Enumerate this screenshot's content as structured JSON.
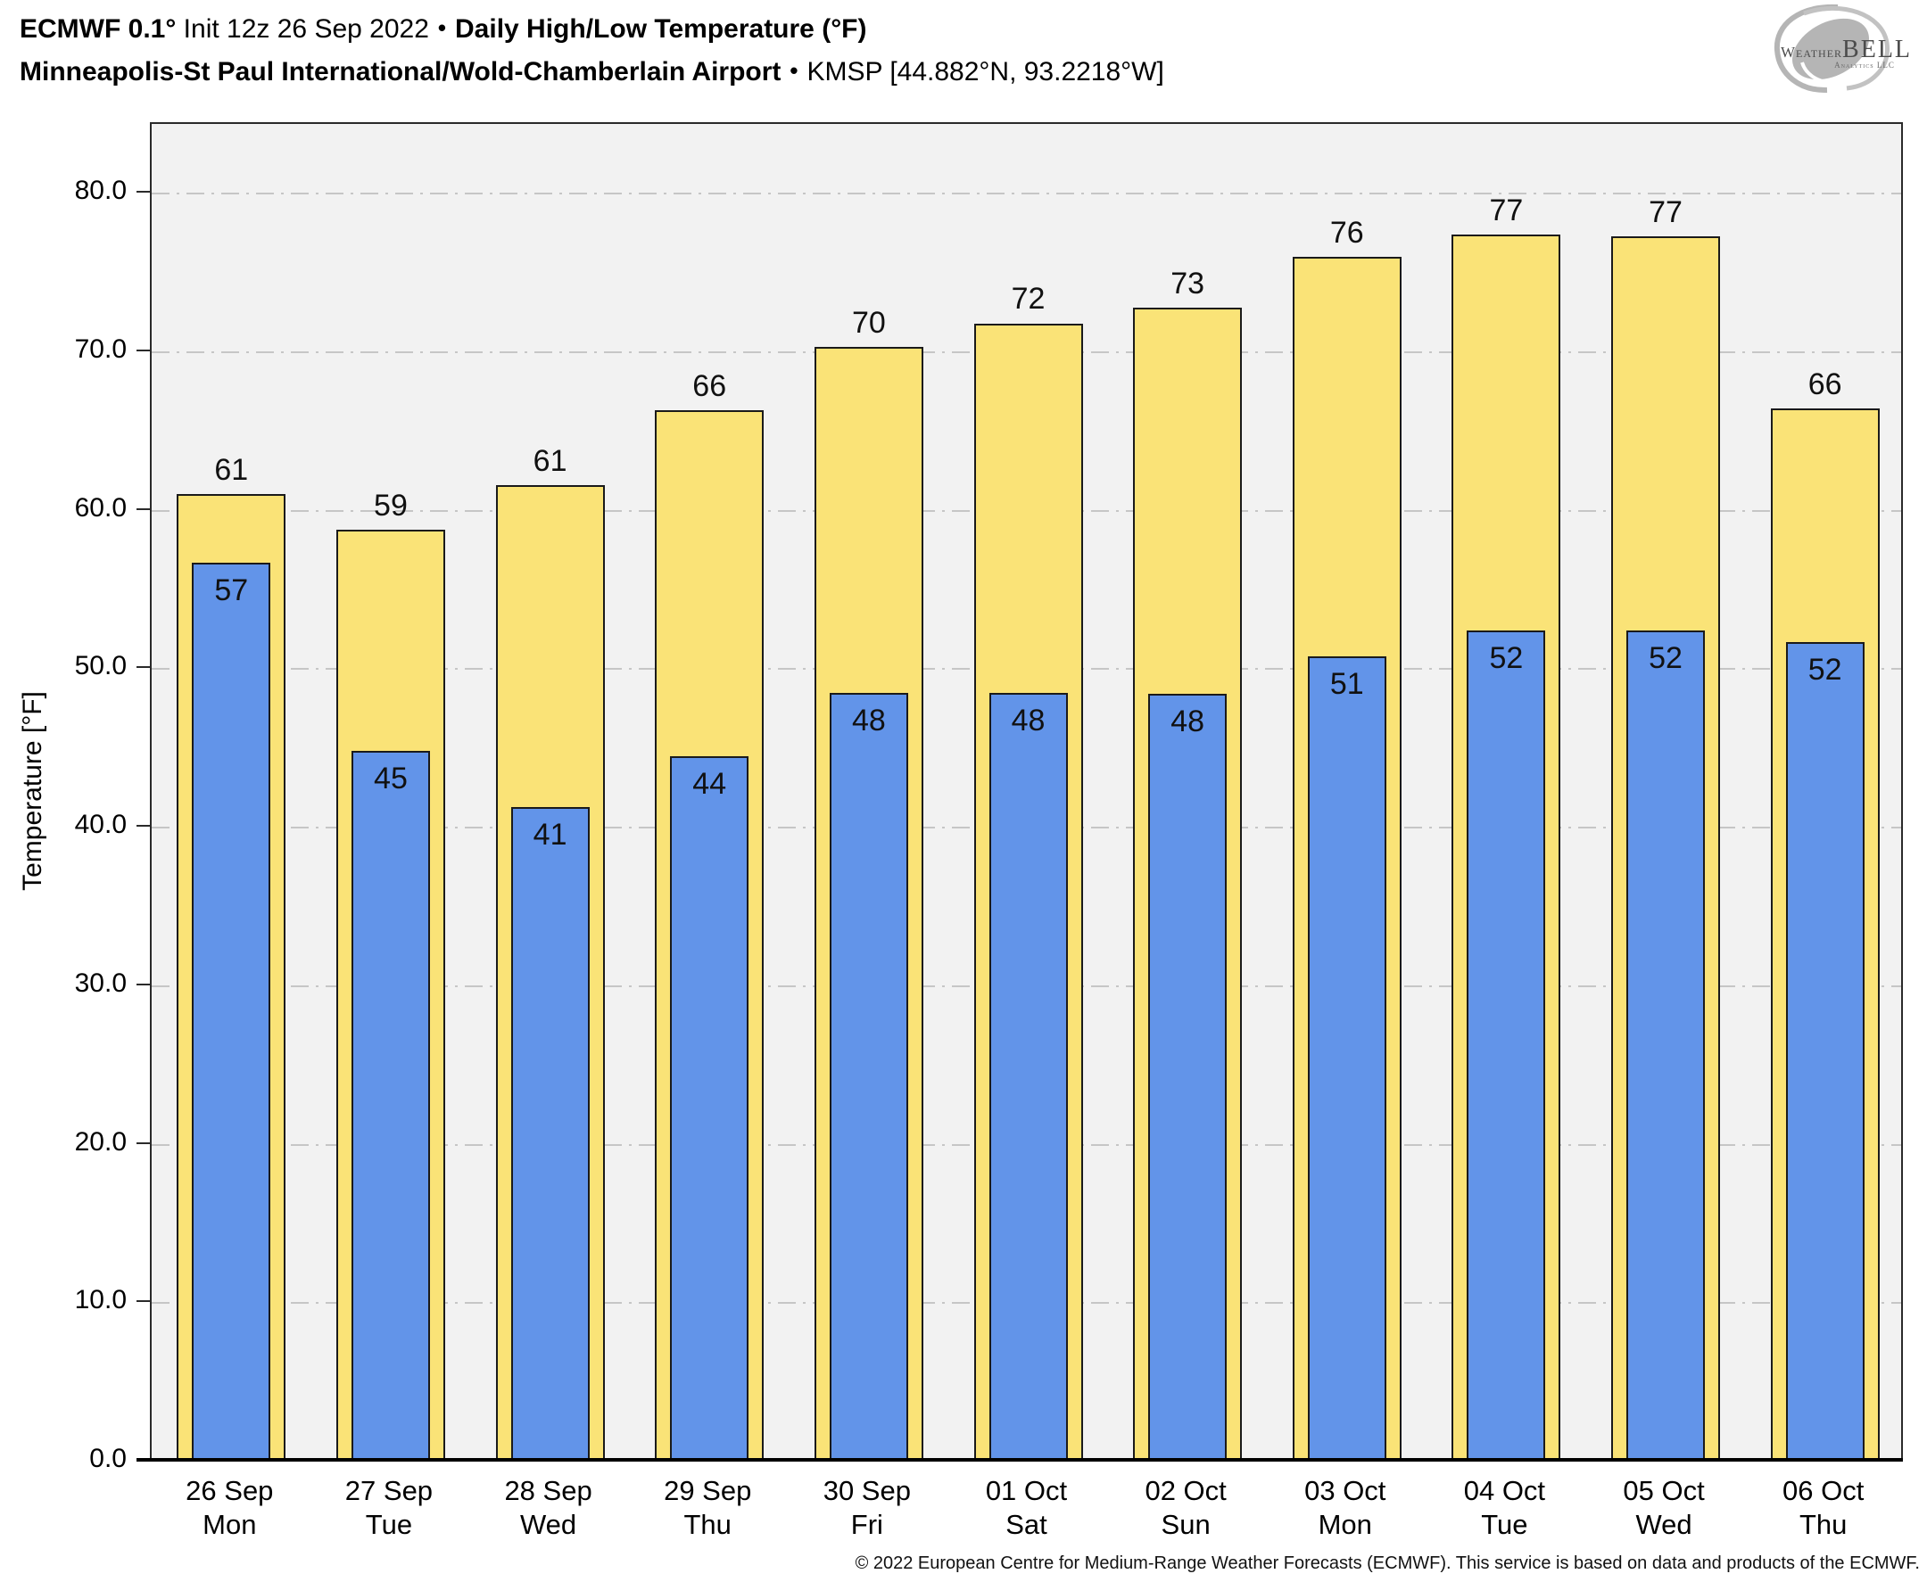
{
  "header": {
    "title": {
      "model_bold": "ECMWF 0.1°",
      "init": " Init 12z 26 Sep 2022",
      "bullet": "•",
      "product_bold": "Daily High/Low Temperature (°F)"
    },
    "subtitle": {
      "station_bold": "Minneapolis-St Paul International/Wold-Chamberlain Airport",
      "bullet": "•",
      "coords": "KMSP [44.882°N, 93.2218°W]"
    },
    "logo": {
      "word_weather": "Weather",
      "word_bell": "BELL",
      "sub": "Analytics LLC"
    }
  },
  "chart_data": {
    "type": "bar",
    "title": "ECMWF 0.1° Init 12z 26 Sep 2022 • Daily High/Low Temperature (°F)",
    "subtitle": "Minneapolis-St Paul International/Wold-Chamberlain Airport • KMSP [44.882°N, 93.2218°W]",
    "xlabel": "",
    "ylabel": "Temperature [°F]",
    "ylim": [
      0,
      84.4
    ],
    "grid": "horizontal dashed lines every 10°F",
    "legend_position": "none",
    "yticks": [
      {
        "value": 0,
        "label": "0.0"
      },
      {
        "value": 10,
        "label": "10.0"
      },
      {
        "value": 20,
        "label": "20.0"
      },
      {
        "value": 30,
        "label": "30.0"
      },
      {
        "value": 40,
        "label": "40.0"
      },
      {
        "value": 50,
        "label": "50.0"
      },
      {
        "value": 60,
        "label": "60.0"
      },
      {
        "value": 70,
        "label": "70.0"
      },
      {
        "value": 80,
        "label": "80.0"
      }
    ],
    "categories": [
      {
        "date": "26 Sep",
        "day": "Mon"
      },
      {
        "date": "27 Sep",
        "day": "Tue"
      },
      {
        "date": "28 Sep",
        "day": "Wed"
      },
      {
        "date": "29 Sep",
        "day": "Thu"
      },
      {
        "date": "30 Sep",
        "day": "Fri"
      },
      {
        "date": "01 Oct",
        "day": "Sat"
      },
      {
        "date": "02 Oct",
        "day": "Sun"
      },
      {
        "date": "03 Oct",
        "day": "Mon"
      },
      {
        "date": "04 Oct",
        "day": "Tue"
      },
      {
        "date": "05 Oct",
        "day": "Wed"
      },
      {
        "date": "06 Oct",
        "day": "Thu"
      }
    ],
    "series": [
      {
        "name": "Daily High",
        "color": "#FAE377",
        "values": [
          61,
          59,
          61,
          66,
          70,
          72,
          73,
          76,
          77,
          77,
          66
        ],
        "bar_heights": [
          60.8,
          58.6,
          61.4,
          66.1,
          70.1,
          71.6,
          72.6,
          75.8,
          77.2,
          77.1,
          66.2
        ]
      },
      {
        "name": "Daily Low",
        "color": "#6294E9",
        "values": [
          57,
          45,
          41,
          44,
          48,
          48,
          48,
          51,
          52,
          52,
          52
        ],
        "bar_heights": [
          56.5,
          44.6,
          41.1,
          44.3,
          48.3,
          48.3,
          48.2,
          50.6,
          52.2,
          52.2,
          51.5
        ]
      }
    ]
  },
  "colors": {
    "high_bar": "#FAE377",
    "low_bar": "#6294E9",
    "bar_border": "#1A1A1A",
    "plot_bg": "#F2F2F2",
    "gridline": "#C6C6C6",
    "axis": "#2A2A2A",
    "text": "#000000"
  },
  "footer": {
    "copyright": "© 2022 European Centre for Medium-Range Weather Forecasts (ECMWF). This service is based on data and products of the ECMWF."
  }
}
